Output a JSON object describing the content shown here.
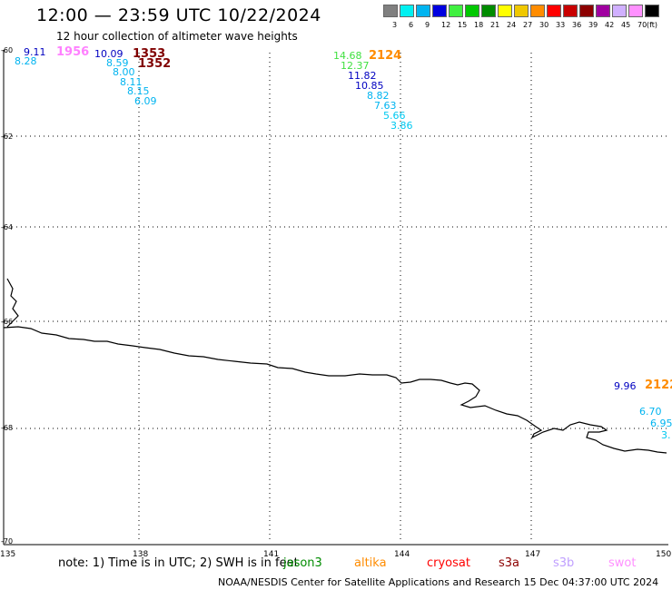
{
  "header": {
    "title": "12:00 — 23:59 UTC 10/22/2024",
    "subtitle": "12 hour collection of altimeter wave heights"
  },
  "legend": {
    "colors": [
      "#808080",
      "#00f0f0",
      "#00b4f0",
      "#0000e0",
      "#40f040",
      "#00c800",
      "#008c00",
      "#ffff00",
      "#f0c800",
      "#ff8c00",
      "#ff0000",
      "#c80000",
      "#8c0000",
      "#a000a0",
      "#d0b0ff",
      "#ff90ff",
      "#000000"
    ],
    "labels": [
      "3",
      "6",
      "9",
      "12",
      "15",
      "18",
      "21",
      "24",
      "27",
      "30",
      "33",
      "36",
      "39",
      "42",
      "45",
      "70",
      "(ft)"
    ]
  },
  "axes": {
    "y_ticks": [
      "-60",
      "-62",
      "-64",
      "-66",
      "-68",
      "-70"
    ],
    "x_ticks": [
      "135",
      "138",
      "141",
      "144",
      "147",
      "150"
    ]
  },
  "tracks": [
    {
      "time": "1956",
      "color": "#ff80ff"
    },
    {
      "time": "1353",
      "color": "#800000"
    },
    {
      "time": "1352",
      "color": "#800000"
    },
    {
      "time": "2124",
      "color": "#ff8c00"
    },
    {
      "time": "2122",
      "color": "#ff8c00"
    }
  ],
  "values": [
    {
      "v": "9.11",
      "color": "#0000c0"
    },
    {
      "v": "8.28",
      "color": "#00b4f0"
    },
    {
      "v": "10.09",
      "color": "#0000c0"
    },
    {
      "v": "8.59",
      "color": "#00b4f0"
    },
    {
      "v": "8.00",
      "color": "#00b4f0"
    },
    {
      "v": "8.11",
      "color": "#00b4f0"
    },
    {
      "v": "8.15",
      "color": "#00b4f0"
    },
    {
      "v": "6.09",
      "color": "#00b4f0"
    },
    {
      "v": "14.68",
      "color": "#40e040"
    },
    {
      "v": "12.37",
      "color": "#40e040"
    },
    {
      "v": "11.82",
      "color": "#0000c0"
    },
    {
      "v": "10.85",
      "color": "#0000c0"
    },
    {
      "v": "8.82",
      "color": "#00b4f0"
    },
    {
      "v": "7.63",
      "color": "#00b4f0"
    },
    {
      "v": "5.66",
      "color": "#00c8f0"
    },
    {
      "v": "3.86",
      "color": "#00c8f0"
    },
    {
      "v": "9.96",
      "color": "#0000c0"
    },
    {
      "v": "6.70",
      "color": "#00b4f0"
    },
    {
      "v": "6.95",
      "color": "#00b4f0"
    },
    {
      "v": "3.",
      "color": "#00c8f0"
    }
  ],
  "note": "note: 1) Time is in UTC; 2) SWH is in feet",
  "satellites": [
    {
      "name": "jason3",
      "color": "#008c00"
    },
    {
      "name": "altika",
      "color": "#ff8c00"
    },
    {
      "name": "cryosat",
      "color": "#ff0000"
    },
    {
      "name": "s3a",
      "color": "#8c0000"
    },
    {
      "name": "s3b",
      "color": "#c0a0ff"
    },
    {
      "name": "swot",
      "color": "#ff90ff"
    }
  ],
  "footer": "NOAA/NESDIS Center for Satellite Applications and Research    15 Dec 04:37:00 UTC 2024"
}
